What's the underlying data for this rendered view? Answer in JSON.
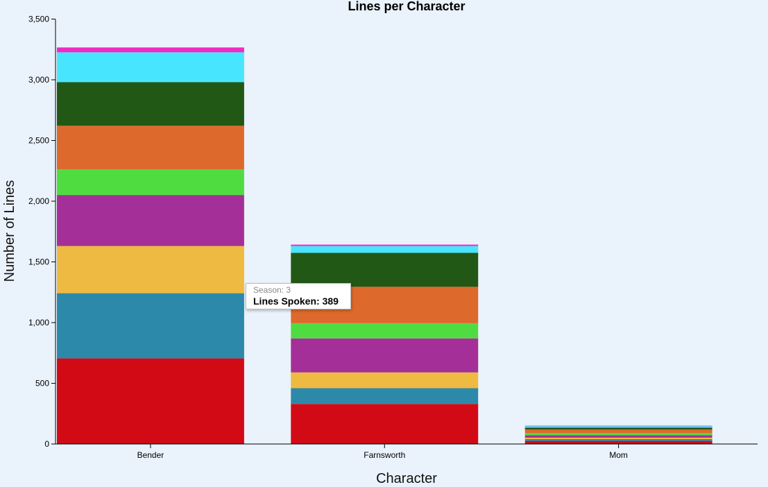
{
  "chart_data": {
    "type": "bar",
    "stacked": true,
    "title": "Lines per Character",
    "xlabel": "Character",
    "ylabel": "Number of Lines",
    "categories": [
      "Bender",
      "Farnsworth",
      "Mom"
    ],
    "ylim": [
      0,
      3600
    ],
    "yticks": [
      0,
      500,
      1000,
      1500,
      2000,
      2500,
      3000,
      3500
    ],
    "ytick_labels": [
      "0",
      "500",
      "1,000",
      "1,500",
      "2,000",
      "2,500",
      "3,000",
      "3,500"
    ],
    "grid": false,
    "series": [
      {
        "color": "#d20a16",
        "values": [
          705,
          330,
          25
        ]
      },
      {
        "color": "#2c89aa",
        "values": [
          537,
          130,
          15
        ]
      },
      {
        "color": "#eeba41",
        "values": [
          389,
          130,
          12
        ]
      },
      {
        "color": "#a52f98",
        "values": [
          420,
          280,
          20
        ]
      },
      {
        "color": "#4fdc41",
        "values": [
          210,
          125,
          18
        ]
      },
      {
        "color": "#de692c",
        "values": [
          360,
          300,
          30
        ]
      },
      {
        "color": "#215815",
        "values": [
          360,
          280,
          15
        ]
      },
      {
        "color": "#48e6fe",
        "values": [
          245,
          55,
          12
        ]
      },
      {
        "color": "#f02bc3",
        "values": [
          40,
          12,
          4
        ]
      }
    ],
    "tooltip": {
      "line1": "Season: 3",
      "line2": "Lines Spoken: 389"
    }
  }
}
